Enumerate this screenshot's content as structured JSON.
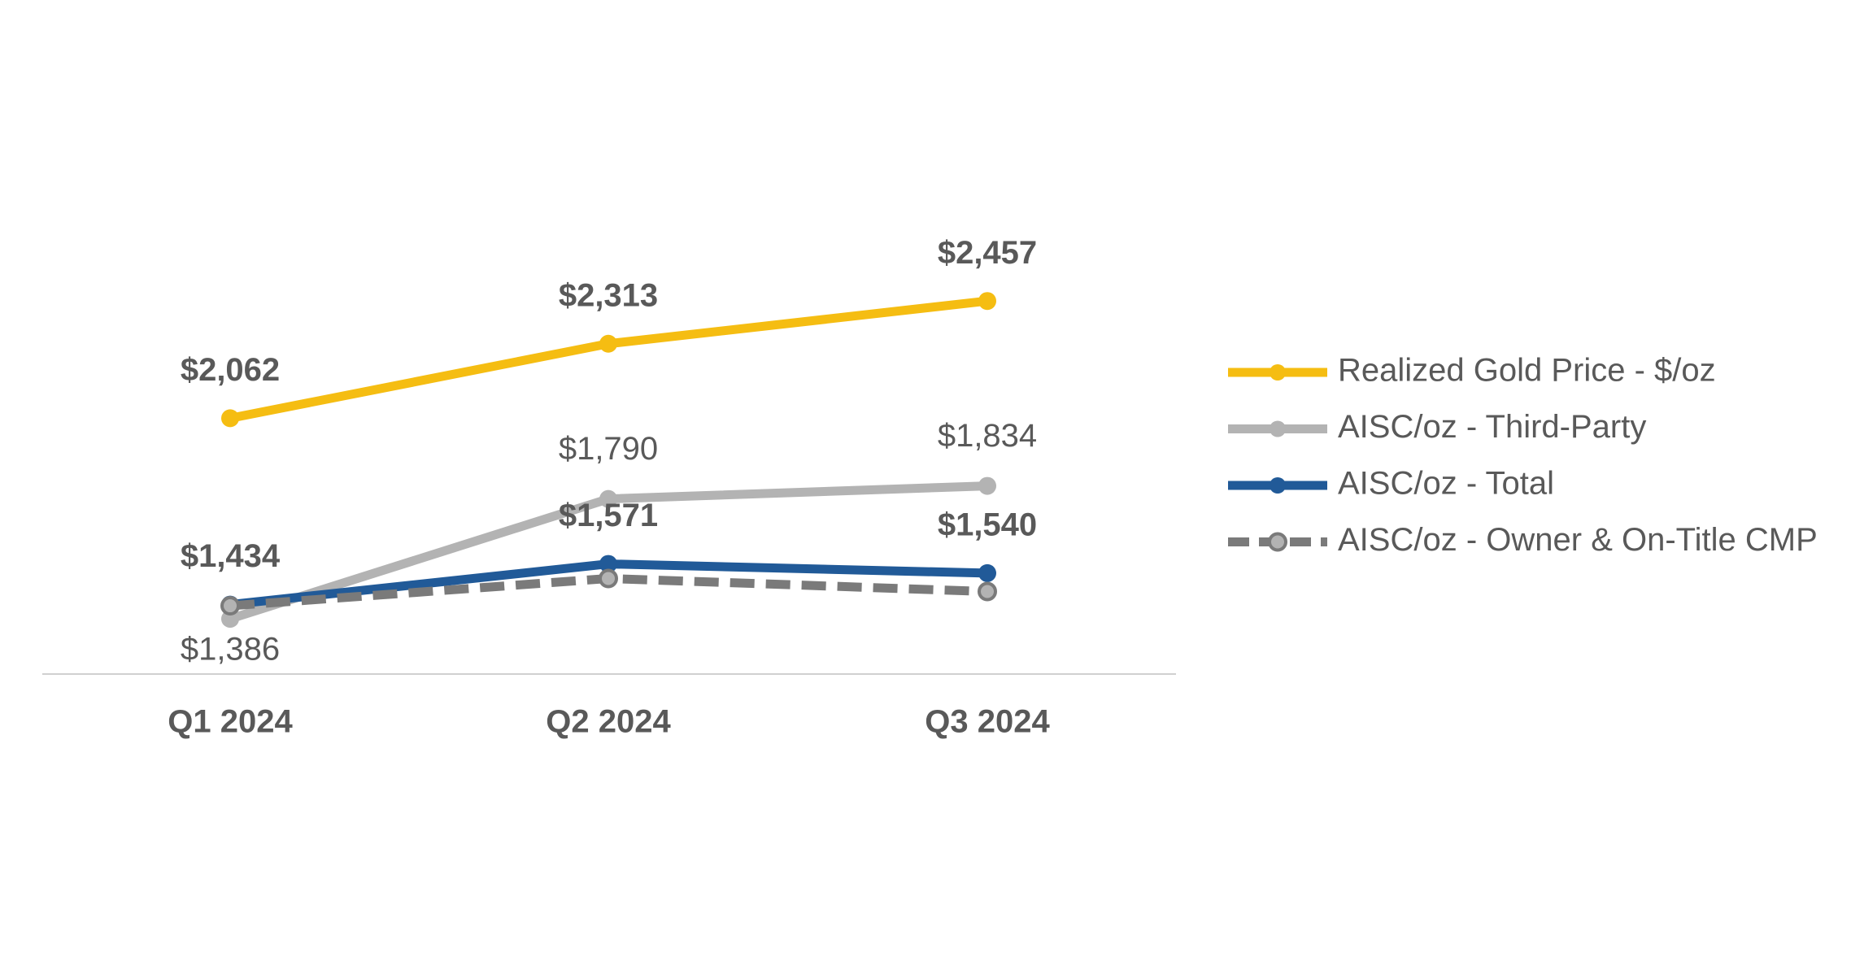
{
  "chart_data": {
    "type": "line",
    "categories": [
      "Q1 2024",
      "Q2 2024",
      "Q3 2024"
    ],
    "ylim": [
      1200,
      2600
    ],
    "series": [
      {
        "name": "Realized Gold Price - $/oz",
        "color": "#f5bd12",
        "values": [
          2062,
          2313,
          2457
        ],
        "value_labels": [
          "$2,062",
          "$2,313",
          "$2,457"
        ]
      },
      {
        "name": "AISC/oz - Third-Party",
        "color": "#b3b3b3",
        "values": [
          1386,
          1790,
          1834
        ],
        "value_labels": [
          "$1,386",
          "$1,790",
          "$1,834"
        ]
      },
      {
        "name": "AISC/oz - Total",
        "color": "#215a98",
        "values": [
          1434,
          1571,
          1540
        ],
        "value_labels": [
          "$1,434",
          "$1,571",
          "$1,540"
        ]
      },
      {
        "name": "AISC/oz - Owner & On-Title CMP",
        "color": "#7a7a7a",
        "marker_color": "#b3b3b3",
        "dashed": true,
        "values": [
          1430,
          1522,
          1478
        ]
      }
    ]
  }
}
